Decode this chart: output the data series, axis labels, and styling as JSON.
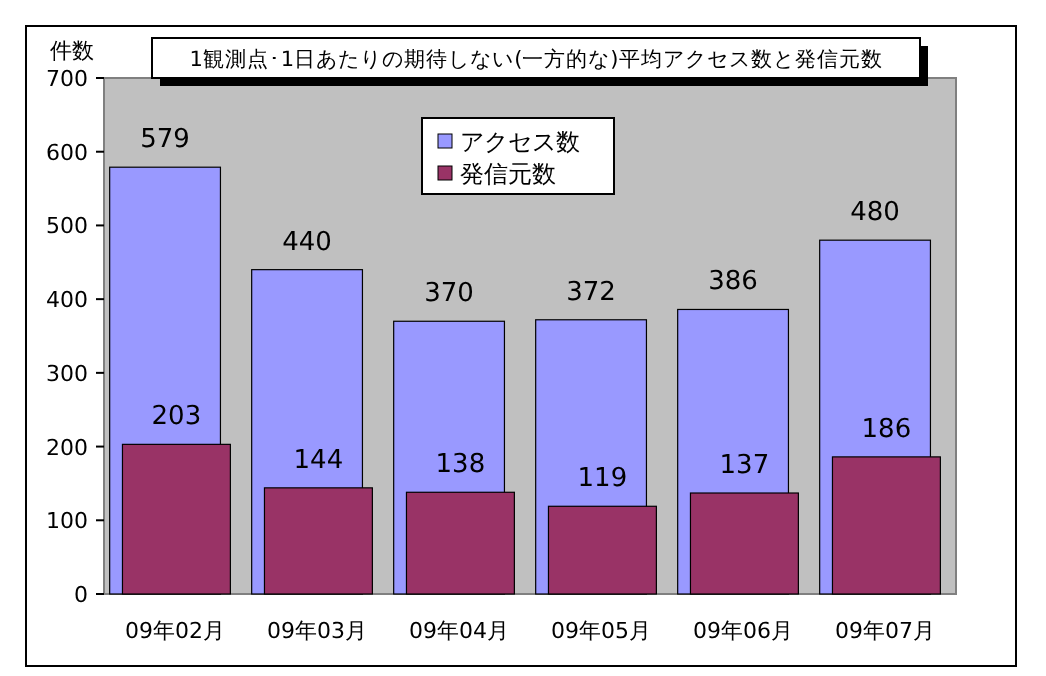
{
  "chart_data": {
    "type": "bar",
    "title": "1観測点･1日あたりの期待しない(一方的な)平均アクセス数と発信元数",
    "ylabel": "件数",
    "categories": [
      "09年02月",
      "09年03月",
      "09年04月",
      "09年05月",
      "09年06月",
      "09年07月"
    ],
    "series": [
      {
        "name": "アクセス数",
        "color": "#9999ff",
        "values": [
          579,
          440,
          370,
          372,
          386,
          480
        ]
      },
      {
        "name": "発信元数",
        "color": "#993366",
        "values": [
          203,
          144,
          138,
          119,
          137,
          186
        ]
      }
    ],
    "ylim": [
      0,
      700
    ],
    "yticks": [
      0,
      100,
      200,
      300,
      400,
      500,
      600,
      700
    ],
    "data_labels": true,
    "legend": "top",
    "grid": false
  }
}
